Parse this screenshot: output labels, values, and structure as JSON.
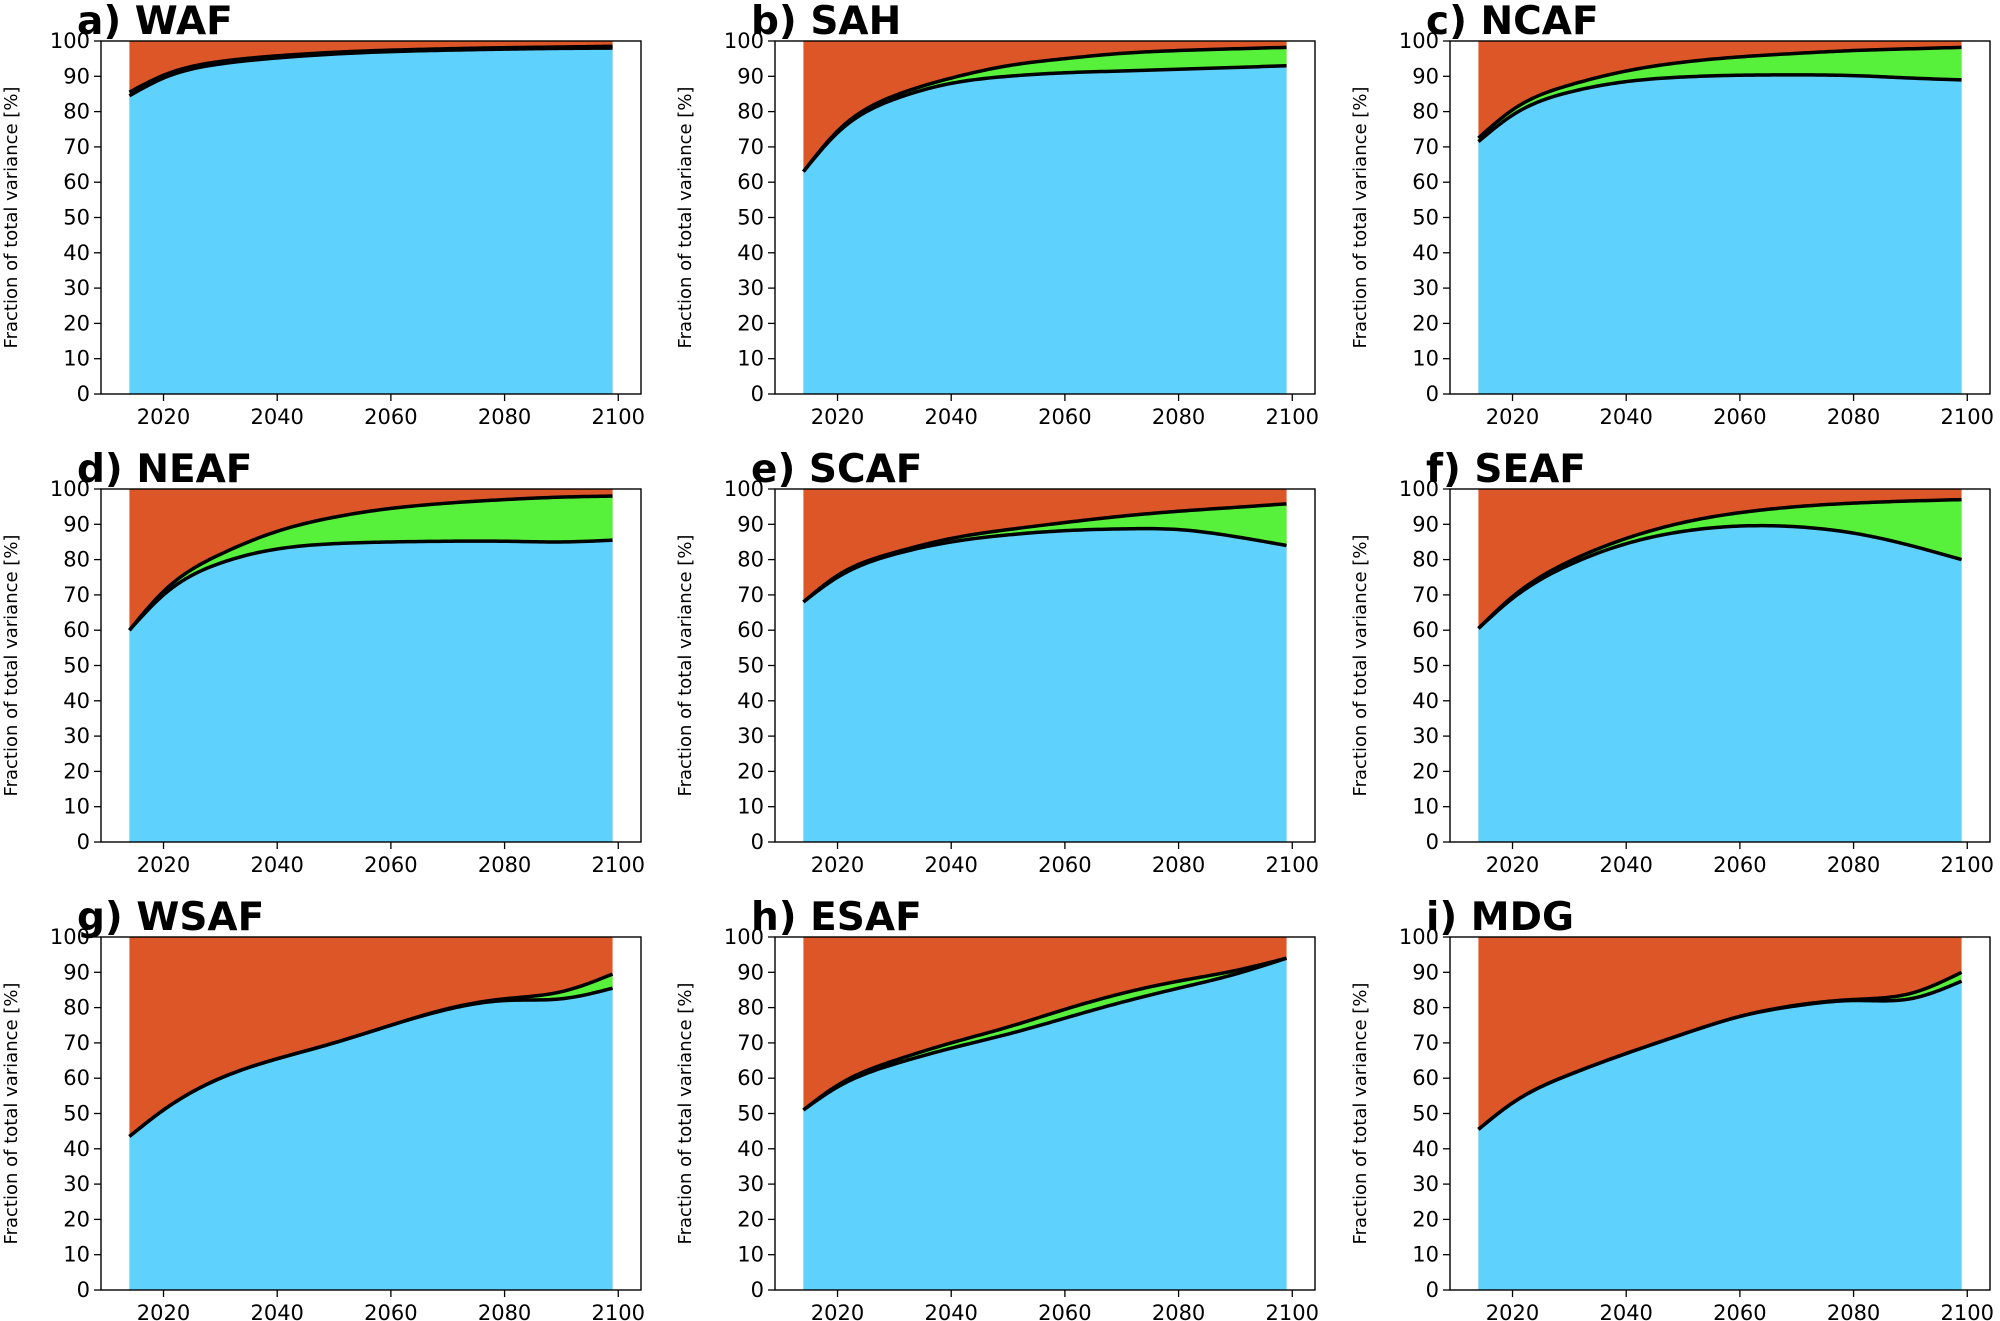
{
  "figure": {
    "description_of_layers": [
      "bottom (blue)",
      "middle (green)",
      "top (orange)"
    ]
  },
  "colors": {
    "bottom": "#5fd1fd",
    "middle": "#57f03a",
    "top": "#dc5628",
    "line": "#000000",
    "background": "#ffffff"
  },
  "chart_data": [
    {
      "type": "area",
      "title": "a) WAF",
      "ylabel": "Fraction of total variance [%]",
      "xlabel": "",
      "xlim": [
        2009,
        2104
      ],
      "ylim": [
        0,
        100
      ],
      "xticks": [
        2020,
        2040,
        2060,
        2080,
        2100
      ],
      "yticks": [
        0,
        10,
        20,
        30,
        40,
        50,
        60,
        70,
        80,
        90,
        100
      ],
      "x": [
        2014,
        2020,
        2030,
        2040,
        2050,
        2060,
        2070,
        2080,
        2090,
        2099
      ],
      "series": [
        {
          "name": "lower boundary",
          "values": [
            84.5,
            89.5,
            93.5,
            95.2,
            96.3,
            97.0,
            97.4,
            97.7,
            97.9,
            98.0
          ]
        },
        {
          "name": "upper boundary",
          "values": [
            85.5,
            90.3,
            94.2,
            95.8,
            96.8,
            97.4,
            97.8,
            98.1,
            98.3,
            98.5
          ]
        }
      ]
    },
    {
      "type": "area",
      "title": "b) SAH",
      "ylabel": "Fraction of total variance [%]",
      "xlabel": "",
      "xlim": [
        2009,
        2104
      ],
      "ylim": [
        0,
        100
      ],
      "xticks": [
        2020,
        2040,
        2060,
        2080,
        2100
      ],
      "yticks": [
        0,
        10,
        20,
        30,
        40,
        50,
        60,
        70,
        80,
        90,
        100
      ],
      "x": [
        2014,
        2020,
        2030,
        2040,
        2050,
        2060,
        2070,
        2080,
        2090,
        2099
      ],
      "series": [
        {
          "name": "lower boundary",
          "values": [
            63,
            74,
            83.5,
            88,
            90,
            91,
            91.5,
            92,
            92.5,
            93
          ]
        },
        {
          "name": "upper boundary",
          "values": [
            63,
            74.5,
            84.5,
            89.5,
            93,
            95,
            96.5,
            97.3,
            97.8,
            98.2
          ]
        }
      ]
    },
    {
      "type": "area",
      "title": "c) NCAF",
      "ylabel": "Fraction of total variance [%]",
      "xlabel": "",
      "xlim": [
        2009,
        2104
      ],
      "ylim": [
        0,
        100
      ],
      "xticks": [
        2020,
        2040,
        2060,
        2080,
        2100
      ],
      "yticks": [
        0,
        10,
        20,
        30,
        40,
        50,
        60,
        70,
        80,
        90,
        100
      ],
      "x": [
        2014,
        2020,
        2030,
        2040,
        2050,
        2060,
        2070,
        2080,
        2090,
        2099
      ],
      "series": [
        {
          "name": "lower boundary",
          "values": [
            71.5,
            79,
            85.5,
            88.5,
            89.8,
            90.3,
            90.4,
            90.2,
            89.5,
            89
          ]
        },
        {
          "name": "upper boundary",
          "values": [
            72.5,
            80.5,
            87.5,
            91.5,
            94,
            95.5,
            96.5,
            97.3,
            97.8,
            98.2
          ]
        }
      ]
    },
    {
      "type": "area",
      "title": "d) NEAF",
      "ylabel": "Fraction of total variance [%]",
      "xlabel": "",
      "xlim": [
        2009,
        2104
      ],
      "ylim": [
        0,
        100
      ],
      "xticks": [
        2020,
        2040,
        2060,
        2080,
        2100
      ],
      "yticks": [
        0,
        10,
        20,
        30,
        40,
        50,
        60,
        70,
        80,
        90,
        100
      ],
      "x": [
        2014,
        2020,
        2030,
        2040,
        2050,
        2060,
        2070,
        2080,
        2090,
        2099
      ],
      "series": [
        {
          "name": "lower boundary",
          "values": [
            60,
            70,
            79,
            83,
            84.5,
            85,
            85.2,
            85.2,
            85,
            85.5
          ]
        },
        {
          "name": "upper boundary",
          "values": [
            60,
            71,
            81.5,
            88,
            92,
            94.5,
            96,
            97,
            97.7,
            98
          ]
        }
      ]
    },
    {
      "type": "area",
      "title": "e) SCAF",
      "ylabel": "Fraction of total variance [%]",
      "xlabel": "",
      "xlim": [
        2009,
        2104
      ],
      "ylim": [
        0,
        100
      ],
      "xticks": [
        2020,
        2040,
        2060,
        2080,
        2100
      ],
      "yticks": [
        0,
        10,
        20,
        30,
        40,
        50,
        60,
        70,
        80,
        90,
        100
      ],
      "x": [
        2014,
        2020,
        2030,
        2040,
        2050,
        2060,
        2070,
        2080,
        2090,
        2099
      ],
      "series": [
        {
          "name": "lower boundary",
          "values": [
            68,
            75,
            81.5,
            85,
            87,
            88.2,
            88.7,
            88.5,
            86.5,
            84
          ]
        },
        {
          "name": "upper boundary",
          "values": [
            68,
            75.5,
            82,
            86,
            88.5,
            90.5,
            92.3,
            93.7,
            94.8,
            95.8
          ]
        }
      ]
    },
    {
      "type": "area",
      "title": "f) SEAF",
      "ylabel": "Fraction of total variance [%]",
      "xlabel": "",
      "xlim": [
        2009,
        2104
      ],
      "ylim": [
        0,
        100
      ],
      "xticks": [
        2020,
        2040,
        2060,
        2080,
        2100
      ],
      "yticks": [
        0,
        10,
        20,
        30,
        40,
        50,
        60,
        70,
        80,
        90,
        100
      ],
      "x": [
        2014,
        2020,
        2030,
        2040,
        2050,
        2060,
        2070,
        2080,
        2090,
        2099
      ],
      "series": [
        {
          "name": "lower boundary",
          "values": [
            60.5,
            69,
            78.5,
            84.5,
            88,
            89.5,
            89.3,
            87.5,
            84,
            80
          ]
        },
        {
          "name": "upper boundary",
          "values": [
            60.5,
            69.5,
            79.5,
            86,
            90.5,
            93.3,
            95,
            96,
            96.6,
            97
          ]
        }
      ]
    },
    {
      "type": "area",
      "title": "g) WSAF",
      "ylabel": "Fraction of total variance [%]",
      "xlabel": "",
      "xlim": [
        2009,
        2104
      ],
      "ylim": [
        0,
        100
      ],
      "xticks": [
        2020,
        2040,
        2060,
        2080,
        2100
      ],
      "yticks": [
        0,
        10,
        20,
        30,
        40,
        50,
        60,
        70,
        80,
        90,
        100
      ],
      "x": [
        2014,
        2020,
        2030,
        2040,
        2050,
        2060,
        2070,
        2080,
        2090,
        2099
      ],
      "series": [
        {
          "name": "lower boundary",
          "values": [
            43.5,
            51,
            60,
            65.5,
            70,
            75,
            79.5,
            82,
            82.5,
            85.5
          ]
        },
        {
          "name": "upper boundary",
          "values": [
            43.5,
            51,
            60,
            65.5,
            70,
            75,
            79.7,
            82.5,
            84.5,
            89.5
          ]
        }
      ]
    },
    {
      "type": "area",
      "title": "h) ESAF",
      "ylabel": "Fraction of total variance [%]",
      "xlabel": "",
      "xlim": [
        2009,
        2104
      ],
      "ylim": [
        0,
        100
      ],
      "xticks": [
        2020,
        2040,
        2060,
        2080,
        2100
      ],
      "yticks": [
        0,
        10,
        20,
        30,
        40,
        50,
        60,
        70,
        80,
        90,
        100
      ],
      "x": [
        2014,
        2020,
        2030,
        2040,
        2050,
        2060,
        2070,
        2080,
        2090,
        2099
      ],
      "series": [
        {
          "name": "lower boundary",
          "values": [
            51,
            57.5,
            64,
            68.5,
            72.5,
            77,
            81.5,
            85.5,
            89.5,
            94
          ]
        },
        {
          "name": "upper boundary",
          "values": [
            51,
            58,
            65,
            70,
            74.5,
            79.5,
            84,
            87.5,
            90.5,
            94
          ]
        }
      ]
    },
    {
      "type": "area",
      "title": "i) MDG",
      "ylabel": "Fraction of total variance [%]",
      "xlabel": "",
      "xlim": [
        2009,
        2104
      ],
      "ylim": [
        0,
        100
      ],
      "xticks": [
        2020,
        2040,
        2060,
        2080,
        2100
      ],
      "yticks": [
        0,
        10,
        20,
        30,
        40,
        50,
        60,
        70,
        80,
        90,
        100
      ],
      "x": [
        2014,
        2020,
        2030,
        2040,
        2050,
        2060,
        2070,
        2080,
        2090,
        2099
      ],
      "series": [
        {
          "name": "lower boundary",
          "values": [
            45.5,
            53,
            61,
            67,
            72.5,
            77.5,
            80.5,
            82,
            82.5,
            87.5
          ]
        },
        {
          "name": "upper boundary",
          "values": [
            45.5,
            53,
            61,
            67,
            72.5,
            77.5,
            80.7,
            82.3,
            84,
            90
          ]
        }
      ]
    }
  ]
}
